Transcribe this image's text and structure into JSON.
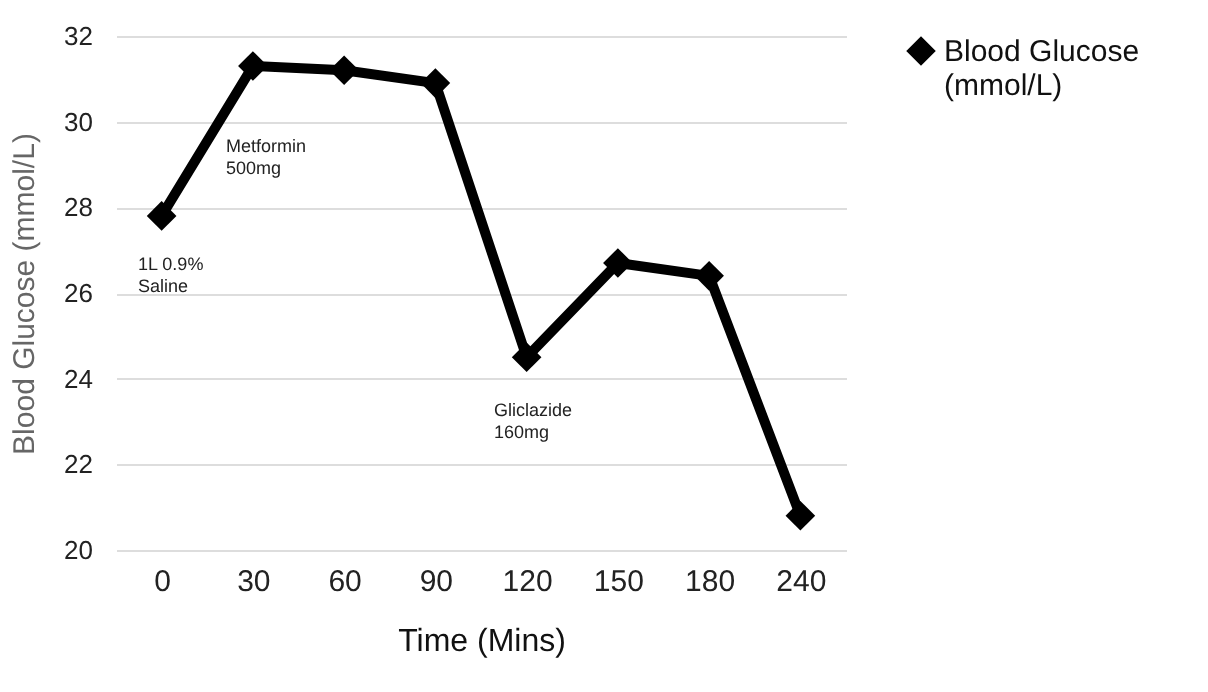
{
  "chart_data": {
    "type": "line",
    "xlabel": "Time (Mins)",
    "ylabel": "Blood Glucose (mmol/L)",
    "categories": [
      "0",
      "30",
      "60",
      "90",
      "120",
      "150",
      "180",
      "240"
    ],
    "series": [
      {
        "name": "Blood Glucose (mmol/L)",
        "color": "#000000",
        "values": [
          27.8,
          31.3,
          31.2,
          30.9,
          24.5,
          26.7,
          26.4,
          20.8
        ]
      }
    ],
    "ylim": [
      20,
      32
    ],
    "yticks": [
      20,
      22,
      24,
      26,
      28,
      30,
      32
    ],
    "grid": "y",
    "legend": "top right",
    "marker": "diamond",
    "line_style": "solid",
    "annotations": [
      "1L 0.9%\nSaline",
      "Metformin\n500mg",
      "Gliclazide\n160mg"
    ]
  }
}
